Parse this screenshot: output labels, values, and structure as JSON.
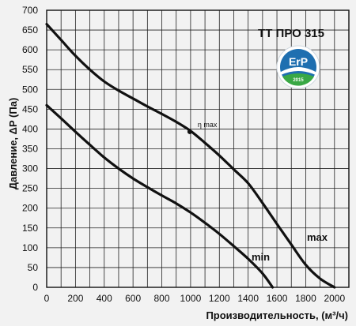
{
  "chart_data": {
    "type": "line",
    "title": "ТТ ПРО 315",
    "xlabel": "Производительность, (м³/ч)",
    "ylabel": "Давление, ΔP (Па)",
    "xlim": [
      0,
      2100
    ],
    "ylim": [
      0,
      700
    ],
    "x_ticks": [
      0,
      200,
      400,
      600,
      800,
      1000,
      1200,
      1400,
      1600,
      1800,
      2000
    ],
    "y_ticks": [
      0,
      50,
      100,
      150,
      200,
      250,
      300,
      350,
      400,
      450,
      500,
      550,
      600,
      650,
      700
    ],
    "x_minor_step": 100,
    "grid": true,
    "series": [
      {
        "name": "max",
        "color": "#111111",
        "points": [
          [
            0,
            665
          ],
          [
            100,
            625
          ],
          [
            200,
            585
          ],
          [
            300,
            550
          ],
          [
            400,
            520
          ],
          [
            500,
            497
          ],
          [
            600,
            477
          ],
          [
            700,
            457
          ],
          [
            800,
            438
          ],
          [
            900,
            418
          ],
          [
            1000,
            395
          ],
          [
            1100,
            365
          ],
          [
            1200,
            333
          ],
          [
            1300,
            298
          ],
          [
            1400,
            263
          ],
          [
            1500,
            213
          ],
          [
            1600,
            160
          ],
          [
            1700,
            108
          ],
          [
            1800,
            57
          ],
          [
            1900,
            22
          ],
          [
            2000,
            0
          ]
        ]
      },
      {
        "name": "min",
        "color": "#111111",
        "points": [
          [
            0,
            460
          ],
          [
            100,
            427
          ],
          [
            200,
            393
          ],
          [
            300,
            360
          ],
          [
            400,
            328
          ],
          [
            500,
            300
          ],
          [
            600,
            275
          ],
          [
            700,
            253
          ],
          [
            800,
            232
          ],
          [
            900,
            212
          ],
          [
            1000,
            189
          ],
          [
            1100,
            163
          ],
          [
            1200,
            135
          ],
          [
            1300,
            104
          ],
          [
            1400,
            72
          ],
          [
            1500,
            35
          ],
          [
            1570,
            0
          ]
        ]
      }
    ],
    "annotations": [
      {
        "text": "η max",
        "x": 1000,
        "y": 393
      }
    ],
    "badge": {
      "line1": "ErP",
      "line2": "2015",
      "color": "#1f6fb0",
      "accent": "#39a845"
    }
  }
}
